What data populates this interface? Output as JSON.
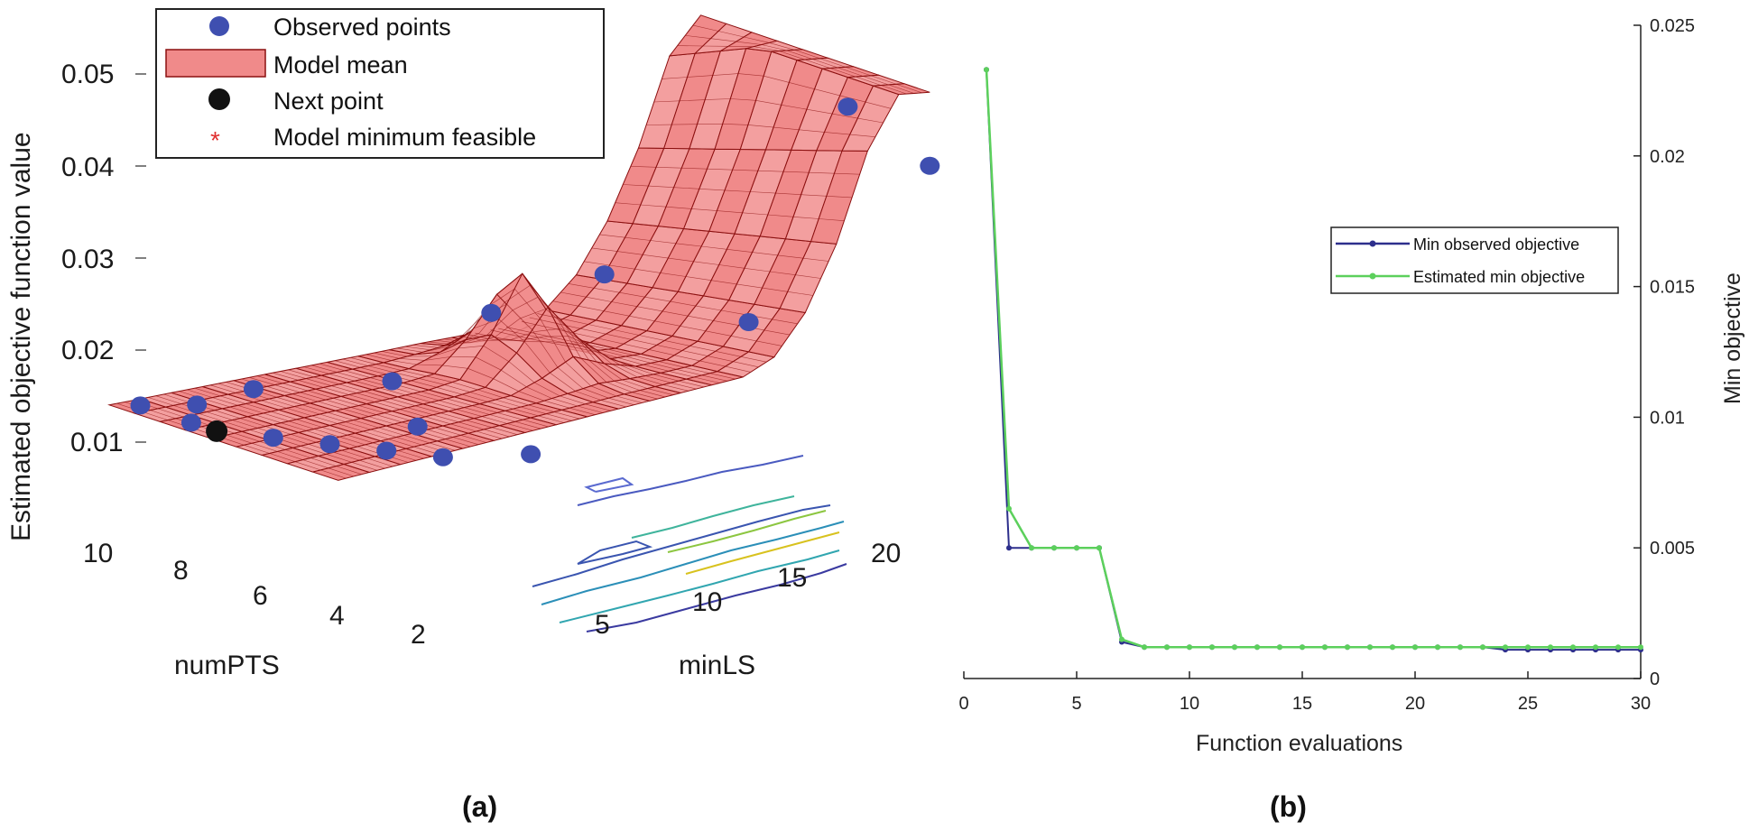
{
  "captions": {
    "a": "(a)",
    "b": "(b)"
  },
  "colors": {
    "surface_fill": "#f08a8a",
    "surface_edge": "#8b1010",
    "observed": "#3f4fb0",
    "next_point": "#111111",
    "model_min": "#e03030",
    "min_observed": "#2d2f8c",
    "estimated_min": "#5cd05c"
  },
  "chart_data": [
    {
      "type": "surface3d",
      "title": "",
      "zlabel": "Estimated objective function value",
      "xlabel": "minLS",
      "ylabel": "numPTS",
      "x_ticks": [
        "5",
        "10",
        "15",
        "20"
      ],
      "y_ticks": [
        "10",
        "8",
        "6",
        "4",
        "2"
      ],
      "z_ticks": [
        "0.05",
        "0.04",
        "0.03",
        "0.02",
        "0.01"
      ],
      "xlim": [
        1,
        20
      ],
      "ylim": [
        1,
        10
      ],
      "zlim": [
        0,
        0.05
      ],
      "legend": {
        "position": "top-left",
        "entries": [
          {
            "label": "Observed points",
            "marker": "circle-blue"
          },
          {
            "label": "Model mean",
            "marker": "patch-red"
          },
          {
            "label": "Next point",
            "marker": "circle-black"
          },
          {
            "label": "Model minimum feasible",
            "marker": "asterisk-red"
          }
        ]
      },
      "observed_points": [
        {
          "minLS": 19,
          "numPTS": 3,
          "value": 0.046
        },
        {
          "minLS": 20,
          "numPTS": 1,
          "value": 0.04
        },
        {
          "minLS": 12,
          "numPTS": 4,
          "value": 0.024
        },
        {
          "minLS": 15,
          "numPTS": 2,
          "value": 0.019
        },
        {
          "minLS": 10,
          "numPTS": 6,
          "value": 0.017
        },
        {
          "minLS": 6,
          "numPTS": 5,
          "value": 0.01
        },
        {
          "minLS": 4,
          "numPTS": 8,
          "value": 0.006
        },
        {
          "minLS": 6,
          "numPTS": 4,
          "value": 0.005
        },
        {
          "minLS": 3,
          "numPTS": 9,
          "value": 0.003
        },
        {
          "minLS": 2,
          "numPTS": 10,
          "value": 0.002
        },
        {
          "minLS": 2,
          "numPTS": 8,
          "value": 0.002
        },
        {
          "minLS": 3,
          "numPTS": 6,
          "value": 0.002
        },
        {
          "minLS": 4,
          "numPTS": 5,
          "value": 0.002
        },
        {
          "minLS": 5,
          "numPTS": 4,
          "value": 0.002
        },
        {
          "minLS": 6,
          "numPTS": 3,
          "value": 0.002
        },
        {
          "minLS": 8,
          "numPTS": 2,
          "value": 0.003
        }
      ],
      "next_point": {
        "minLS": 2,
        "numPTS": 7,
        "value": 0.002
      }
    },
    {
      "type": "line",
      "title": "",
      "xlabel": "Function evaluations",
      "ylabel": "Min objective",
      "xlim": [
        0,
        30
      ],
      "ylim": [
        0,
        0.025
      ],
      "x_ticks": [
        "0",
        "5",
        "10",
        "15",
        "20",
        "25",
        "30"
      ],
      "y_ticks": [
        "0",
        "0.005",
        "0.01",
        "0.015",
        "0.02",
        "0.025"
      ],
      "y_axis_side": "right",
      "legend_position": "center-right",
      "x": [
        1,
        2,
        3,
        4,
        5,
        6,
        7,
        8,
        9,
        10,
        11,
        12,
        13,
        14,
        15,
        16,
        17,
        18,
        19,
        20,
        21,
        22,
        23,
        24,
        25,
        26,
        27,
        28,
        29,
        30
      ],
      "series": [
        {
          "name": "Min observed objective",
          "values": [
            0.0233,
            0.005,
            0.005,
            0.005,
            0.005,
            0.005,
            0.0014,
            0.0012,
            0.0012,
            0.0012,
            0.0012,
            0.0012,
            0.0012,
            0.0012,
            0.0012,
            0.0012,
            0.0012,
            0.0012,
            0.0012,
            0.0012,
            0.0012,
            0.0012,
            0.0012,
            0.0011,
            0.0011,
            0.0011,
            0.0011,
            0.0011,
            0.0011,
            0.0011
          ]
        },
        {
          "name": "Estimated min objective",
          "values": [
            0.0233,
            0.0065,
            0.005,
            0.005,
            0.005,
            0.005,
            0.0015,
            0.0012,
            0.0012,
            0.0012,
            0.0012,
            0.0012,
            0.0012,
            0.0012,
            0.0012,
            0.0012,
            0.0012,
            0.0012,
            0.0012,
            0.0012,
            0.0012,
            0.0012,
            0.0012,
            0.0012,
            0.0012,
            0.0012,
            0.0012,
            0.0012,
            0.0012,
            0.0012
          ]
        }
      ]
    }
  ]
}
